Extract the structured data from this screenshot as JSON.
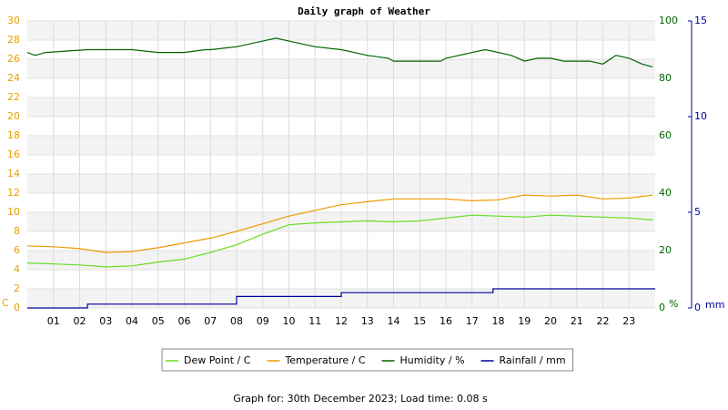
{
  "chart_data": {
    "type": "line",
    "title": "Daily graph of Weather",
    "footer": "Graph for: 30th December 2023; Load time: 0.08 s",
    "y_unit": "C",
    "y2_unit": "%",
    "y3_unit": "mm",
    "xlim": [
      0,
      24
    ],
    "xticks": [
      {
        "value": 1,
        "label": "01"
      },
      {
        "value": 2,
        "label": "02"
      },
      {
        "value": 3,
        "label": "03"
      },
      {
        "value": 4,
        "label": "04"
      },
      {
        "value": 5,
        "label": "05"
      },
      {
        "value": 6,
        "label": "06"
      },
      {
        "value": 7,
        "label": "07"
      },
      {
        "value": 8,
        "label": "08"
      },
      {
        "value": 9,
        "label": "09"
      },
      10,
      11,
      12,
      13,
      14,
      15,
      16,
      17,
      18,
      19,
      20,
      21,
      22,
      23
    ],
    "ylim": [
      0,
      30
    ],
    "yticks": [
      0,
      2,
      4,
      6,
      8,
      10,
      12,
      14,
      16,
      18,
      20,
      22,
      24,
      26,
      28,
      30
    ],
    "y2lim": [
      0,
      100
    ],
    "y2ticks": [
      0,
      20,
      40,
      60,
      80,
      100
    ],
    "y3lim": [
      0,
      15
    ],
    "y3ticks": [
      0,
      5,
      10,
      15
    ],
    "grid": true,
    "series": [
      {
        "name": "Dew Point / C",
        "color": "#66dd22",
        "x": [
          0,
          1,
          2,
          3,
          4,
          5,
          6,
          7,
          8,
          9,
          10,
          11,
          12,
          13,
          14,
          15,
          16,
          17,
          18,
          19,
          20,
          21,
          22,
          23,
          23.9
        ],
        "values": [
          4.7,
          4.6,
          4.5,
          4.3,
          4.4,
          4.8,
          5.1,
          5.8,
          6.6,
          7.7,
          8.7,
          8.9,
          9.0,
          9.1,
          9.0,
          9.1,
          9.4,
          9.7,
          9.6,
          9.5,
          9.7,
          9.6,
          9.5,
          9.4,
          9.2
        ]
      },
      {
        "name": "Temperature / C",
        "color": "#ee9900",
        "x": [
          0,
          1,
          2,
          3,
          4,
          5,
          6,
          7,
          8,
          9,
          10,
          11,
          12,
          13,
          14,
          15,
          16,
          17,
          18,
          19,
          20,
          21,
          22,
          23,
          23.9
        ],
        "values": [
          6.5,
          6.4,
          6.2,
          5.8,
          5.9,
          6.3,
          6.8,
          7.3,
          8.0,
          8.8,
          9.6,
          10.2,
          10.8,
          11.1,
          11.4,
          11.4,
          11.4,
          11.2,
          11.3,
          11.8,
          11.7,
          11.8,
          11.4,
          11.5,
          11.8
        ]
      },
      {
        "name": "Humidity / %",
        "color": "#006600",
        "axis": "y2",
        "x": [
          0,
          0.3,
          0.7,
          2.3,
          3,
          4,
          5,
          6,
          6.8,
          7,
          8,
          8.5,
          9,
          9.5,
          10,
          10.5,
          11,
          12,
          12.5,
          13,
          13.8,
          14,
          15,
          15.8,
          16,
          16.5,
          17,
          17.5,
          18,
          18.5,
          19,
          19.5,
          20,
          20.5,
          21,
          21.5,
          22,
          22.5,
          23,
          23.5,
          23.9
        ],
        "values": [
          89,
          88,
          89,
          90,
          90,
          90,
          89,
          89,
          90,
          90,
          91,
          92,
          93,
          94,
          93,
          92,
          91,
          90,
          89,
          88,
          87,
          86,
          86,
          86,
          87,
          88,
          89,
          90,
          89,
          88,
          86,
          87,
          87,
          86,
          86,
          86,
          85,
          88,
          87,
          85,
          84
        ]
      },
      {
        "name": "Rainfall / mm",
        "color": "#000099",
        "axis": "y3",
        "x": [
          0,
          2.3,
          2.3,
          8,
          8,
          12,
          12,
          17.8,
          17.8,
          24
        ],
        "values": [
          0,
          0,
          0.2,
          0.2,
          0.6,
          0.6,
          0.8,
          0.8,
          1.0,
          1.0
        ]
      }
    ]
  }
}
